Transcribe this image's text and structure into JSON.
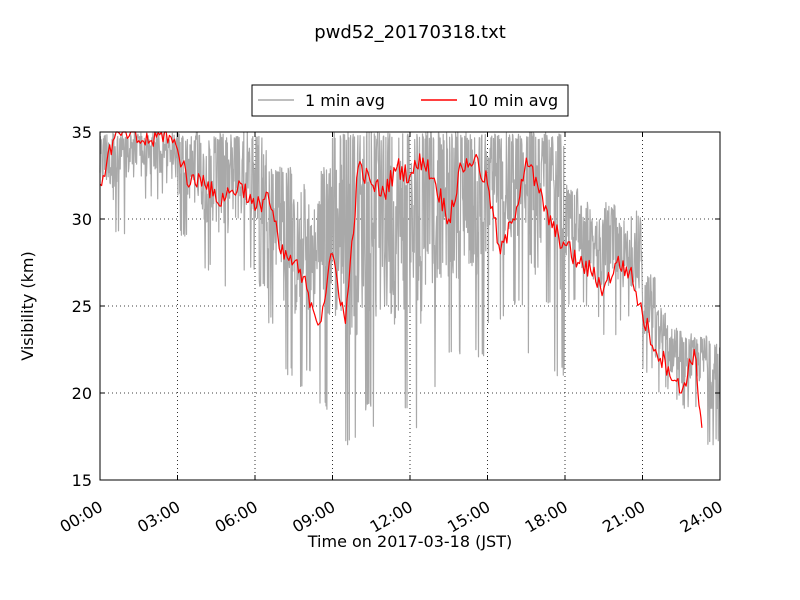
{
  "chart_data": {
    "type": "line",
    "title": "pwd52_20170318.txt",
    "xlabel": "Time on 2017-03-18 (JST)",
    "ylabel": "Visibility (km)",
    "xlim": [
      0,
      24
    ],
    "ylim": [
      15,
      35
    ],
    "x_ticks": [
      0,
      3,
      6,
      9,
      12,
      15,
      18,
      21,
      24
    ],
    "x_tick_labels": [
      "00:00",
      "03:00",
      "06:00",
      "09:00",
      "12:00",
      "15:00",
      "18:00",
      "21:00",
      "24:00"
    ],
    "y_ticks": [
      15,
      20,
      25,
      30,
      35
    ],
    "y_tick_labels": [
      "15",
      "20",
      "25",
      "30",
      "35"
    ],
    "grid": true,
    "legend_position": "top-center",
    "series": [
      {
        "name": "1 min avg",
        "color": "#a9a9a9",
        "x": [
          0.0,
          0.5,
          1.0,
          1.5,
          2.0,
          2.5,
          3.0,
          3.5,
          4.0,
          4.5,
          5.0,
          5.5,
          6.0,
          6.5,
          7.0,
          7.5,
          8.0,
          8.5,
          9.0,
          9.5,
          10.0,
          10.5,
          11.0,
          11.5,
          12.0,
          12.5,
          13.0,
          13.5,
          14.0,
          14.5,
          15.0,
          15.5,
          16.0,
          16.5,
          17.0,
          17.5,
          18.0,
          18.5,
          19.0,
          19.5,
          20.0,
          20.5,
          21.0,
          21.5,
          22.0,
          22.5,
          23.0,
          23.5
        ],
        "y_min": [
          30.0,
          29.0,
          31.0,
          31.0,
          31.0,
          32.0,
          29.0,
          28.0,
          27.0,
          26.0,
          27.0,
          27.0,
          26.0,
          24.0,
          21.0,
          20.0,
          21.0,
          19.0,
          18.0,
          17.0,
          19.0,
          18.0,
          18.0,
          19.0,
          18.0,
          20.0,
          22.0,
          22.0,
          23.0,
          22.0,
          24.0,
          24.0,
          25.0,
          22.0,
          25.0,
          21.0,
          25.0,
          25.0,
          24.0,
          23.0,
          24.0,
          23.0,
          21.0,
          20.0,
          19.5,
          19.0,
          19.0,
          17.0
        ],
        "y_max": [
          35.0,
          35.0,
          35.0,
          35.0,
          35.0,
          35.0,
          35.0,
          35.0,
          35.0,
          35.0,
          35.0,
          35.0,
          35.0,
          33.0,
          33.0,
          32.0,
          31.0,
          33.0,
          35.0,
          35.0,
          35.0,
          35.0,
          35.0,
          35.0,
          35.0,
          35.0,
          35.0,
          35.0,
          35.0,
          35.0,
          35.0,
          35.0,
          35.0,
          35.0,
          35.0,
          35.0,
          32.0,
          31.0,
          30.0,
          31.0,
          30.0,
          30.5,
          27.0,
          25.0,
          24.0,
          23.5,
          23.5,
          23.0
        ]
      },
      {
        "name": "10 min avg",
        "color": "#ff0000",
        "x": [
          0.0,
          0.5,
          1.0,
          1.5,
          2.0,
          2.5,
          3.0,
          3.5,
          4.0,
          4.5,
          5.0,
          5.5,
          6.0,
          6.5,
          7.0,
          7.5,
          8.0,
          8.5,
          9.0,
          9.5,
          10.0,
          10.5,
          11.0,
          11.5,
          12.0,
          12.5,
          13.0,
          13.5,
          14.0,
          14.5,
          15.0,
          15.5,
          16.0,
          16.5,
          17.0,
          17.5,
          18.0,
          18.5,
          19.0,
          19.5,
          20.0,
          20.5,
          21.0,
          21.5,
          22.0,
          22.5,
          23.0,
          23.3
        ],
        "y": [
          32.0,
          34.5,
          35.0,
          34.5,
          34.5,
          35.0,
          34.0,
          32.0,
          32.5,
          31.0,
          31.5,
          32.0,
          30.5,
          31.5,
          28.0,
          27.5,
          26.0,
          24.0,
          28.0,
          24.0,
          33.0,
          32.0,
          31.5,
          33.0,
          32.5,
          33.5,
          32.0,
          30.0,
          33.0,
          33.5,
          32.0,
          28.0,
          30.0,
          33.5,
          31.5,
          29.5,
          28.5,
          27.5,
          27.0,
          26.0,
          27.5,
          27.0,
          24.5,
          22.5,
          21.5,
          20.0,
          22.5,
          18.0
        ]
      }
    ]
  }
}
